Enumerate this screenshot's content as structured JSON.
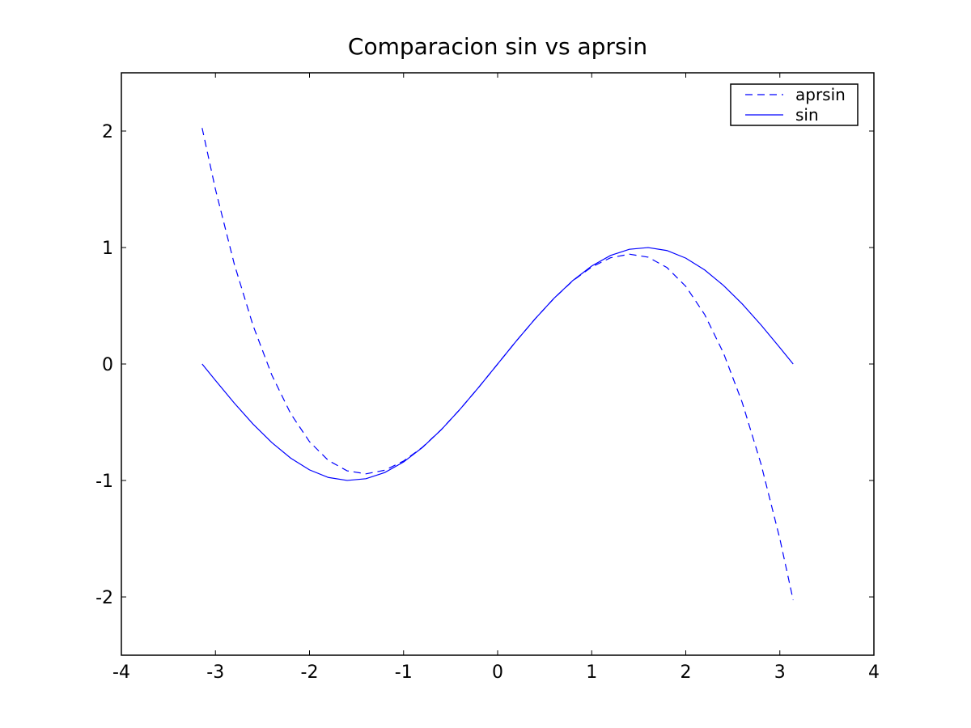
{
  "chart_data": {
    "type": "line",
    "title": "Comparacion sin vs aprsin",
    "xlabel": "",
    "ylabel": "",
    "xlim": [
      -4,
      4
    ],
    "ylim": [
      -2.5,
      2.5
    ],
    "xticks": [
      -4,
      -3,
      -2,
      -1,
      0,
      1,
      2,
      3,
      4
    ],
    "xtick_labels": [
      "-4",
      "-3",
      "-2",
      "-1",
      "0",
      "1",
      "2",
      "3",
      "4"
    ],
    "yticks": [
      -2,
      -1,
      0,
      1,
      2
    ],
    "ytick_labels": [
      "-2",
      "-1",
      "0",
      "1",
      "2"
    ],
    "grid": false,
    "legend_position": "top-right",
    "series": [
      {
        "name": "aprsin",
        "style": "dashed",
        "color": "#0000ff",
        "x": [
          -3.1416,
          -3.0,
          -2.8,
          -2.6,
          -2.4,
          -2.2,
          -2.0,
          -1.8,
          -1.6,
          -1.4,
          -1.2,
          -1.0,
          -0.8,
          -0.6,
          -0.4,
          -0.2,
          0.0,
          0.2,
          0.4,
          0.6,
          0.8,
          1.0,
          1.2,
          1.4,
          1.6,
          1.8,
          2.0,
          2.2,
          2.4,
          2.6,
          2.8,
          3.0,
          3.1416
        ],
        "y": [
          2.026,
          1.5,
          0.859,
          0.33,
          -0.096,
          -0.426,
          -0.667,
          -0.828,
          -0.917,
          -0.943,
          -0.912,
          -0.833,
          -0.715,
          -0.564,
          -0.389,
          -0.199,
          0.0,
          0.199,
          0.389,
          0.564,
          0.715,
          0.833,
          0.912,
          0.943,
          0.917,
          0.828,
          0.667,
          0.426,
          0.096,
          -0.33,
          -0.859,
          -1.5,
          -2.026
        ]
      },
      {
        "name": "sin",
        "style": "solid",
        "color": "#0000ff",
        "x": [
          -3.1416,
          -3.0,
          -2.8,
          -2.6,
          -2.4,
          -2.2,
          -2.0,
          -1.8,
          -1.6,
          -1.4,
          -1.2,
          -1.0,
          -0.8,
          -0.6,
          -0.4,
          -0.2,
          0.0,
          0.2,
          0.4,
          0.6,
          0.8,
          1.0,
          1.2,
          1.4,
          1.6,
          1.8,
          2.0,
          2.2,
          2.4,
          2.6,
          2.8,
          3.0,
          3.1416
        ],
        "y": [
          0.0,
          -0.141,
          -0.335,
          -0.516,
          -0.675,
          -0.808,
          -0.909,
          -0.974,
          -0.9996,
          -0.985,
          -0.932,
          -0.841,
          -0.717,
          -0.565,
          -0.389,
          -0.199,
          0.0,
          0.199,
          0.389,
          0.565,
          0.717,
          0.841,
          0.932,
          0.985,
          0.9996,
          0.974,
          0.909,
          0.808,
          0.675,
          0.516,
          0.335,
          0.141,
          0.0
        ]
      }
    ]
  },
  "colors": {
    "line": "#0000ff",
    "axes": "#000000",
    "background": "#ffffff"
  }
}
